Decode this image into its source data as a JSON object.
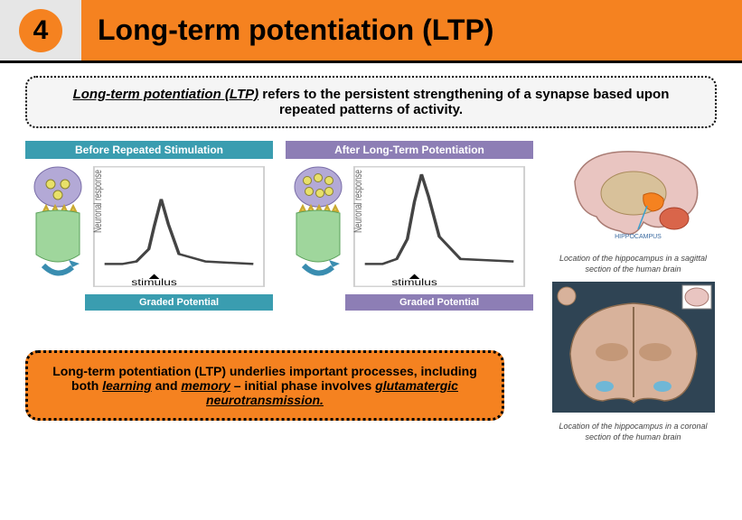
{
  "header": {
    "number": "4",
    "title": "Long-term potentiation (LTP)"
  },
  "definition": {
    "term": "Long-term potentiation (LTP)",
    "rest": " refers to the persistent strengthening of a synapse based upon repeated patterns of activity."
  },
  "panels": {
    "before": {
      "title": "Before Repeated Stimulation",
      "footer": "Graded Potential",
      "title_bg": "#3a9db0",
      "vesicle_count": 3
    },
    "after": {
      "title": "After Long-Term Potentiation",
      "footer": "Graded Potential",
      "title_bg": "#8d7eb5",
      "vesicle_count": 6
    },
    "chart": {
      "xlabel": "stimulus",
      "ylabel": "Neuronal response",
      "border_color": "#cfcfcf",
      "small_peak": [
        [
          8,
          80
        ],
        [
          18,
          80
        ],
        [
          26,
          78
        ],
        [
          33,
          68
        ],
        [
          36,
          50
        ],
        [
          40,
          28
        ],
        [
          44,
          48
        ],
        [
          50,
          72
        ],
        [
          65,
          78
        ],
        [
          92,
          80
        ]
      ],
      "large_peak": [
        [
          8,
          80
        ],
        [
          18,
          80
        ],
        [
          26,
          76
        ],
        [
          32,
          60
        ],
        [
          36,
          30
        ],
        [
          40,
          8
        ],
        [
          44,
          26
        ],
        [
          50,
          58
        ],
        [
          62,
          76
        ],
        [
          92,
          78
        ]
      ],
      "stroke": "#444"
    },
    "synapse_colors": {
      "pre_fill": "#b3a9d6",
      "vesicle_fill": "#e8e069",
      "vesicle_stroke": "#8a8230",
      "post_fill": "#9fd69c",
      "receptor": "#e0c84a",
      "arrow": "#3a8db0"
    }
  },
  "right": {
    "brain1_caption": "Location of the hippocampus in a sagittal section of the human brain",
    "brain2_caption": "Location of the hippocampus in a coronal section of the human brain",
    "hippo_label": "HIPPOCAMPUS",
    "brain_outer": "#e9c5c1",
    "brain_inner": "#d19e8f",
    "highlight": "#f58220",
    "coronal_bg": "#2f4454",
    "coronal_tissue": "#d8b29b"
  },
  "callout": {
    "pre": "Long-term potentiation (LTP) underlies important processes, including both ",
    "u1": "learning",
    "mid": " and ",
    "u2": "memory",
    "post": " – initial phase involves ",
    "u3": "glutamatergic neurotransmission."
  },
  "colors": {
    "orange": "#f58220",
    "header_grey": "#e6e6e6"
  }
}
